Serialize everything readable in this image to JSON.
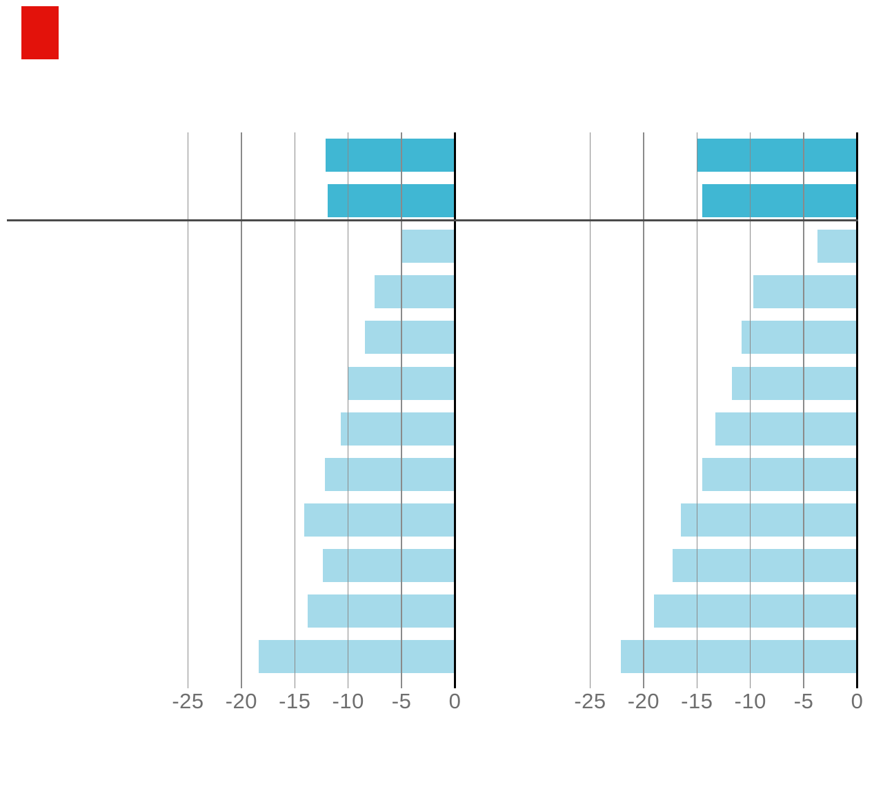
{
  "page": {
    "background": "#ffffff"
  },
  "brand_tab": {
    "color": "#e3120b"
  },
  "chart_data": {
    "type": "bar",
    "orientation": "horizontal",
    "title": "",
    "xlabel": "",
    "ylabel": "",
    "xlim": [
      -25,
      0
    ],
    "xticks": [
      "-25",
      "-20",
      "-15",
      "-10",
      "-5",
      "0"
    ],
    "grid": true,
    "legend": false,
    "highlight_count": 2,
    "panels": [
      {
        "name": "left-panel",
        "values": [
          -12.1,
          -11.9,
          -5.0,
          -7.5,
          -8.4,
          -10.0,
          -10.7,
          -12.2,
          -14.1,
          -12.4,
          -13.8,
          -18.4
        ]
      },
      {
        "name": "right-panel",
        "values": [
          -15.0,
          -14.5,
          -3.7,
          -9.7,
          -10.8,
          -11.7,
          -13.3,
          -14.5,
          -16.5,
          -17.3,
          -19.0,
          -22.1
        ]
      }
    ],
    "colors": {
      "highlight_bar": "#40b7d3",
      "bar": "#a5daea",
      "gridline": "#8a8a8a",
      "zero_axis": "#000000",
      "separator": "#4a4a4a",
      "tick_label": "#6e6e6e"
    }
  }
}
